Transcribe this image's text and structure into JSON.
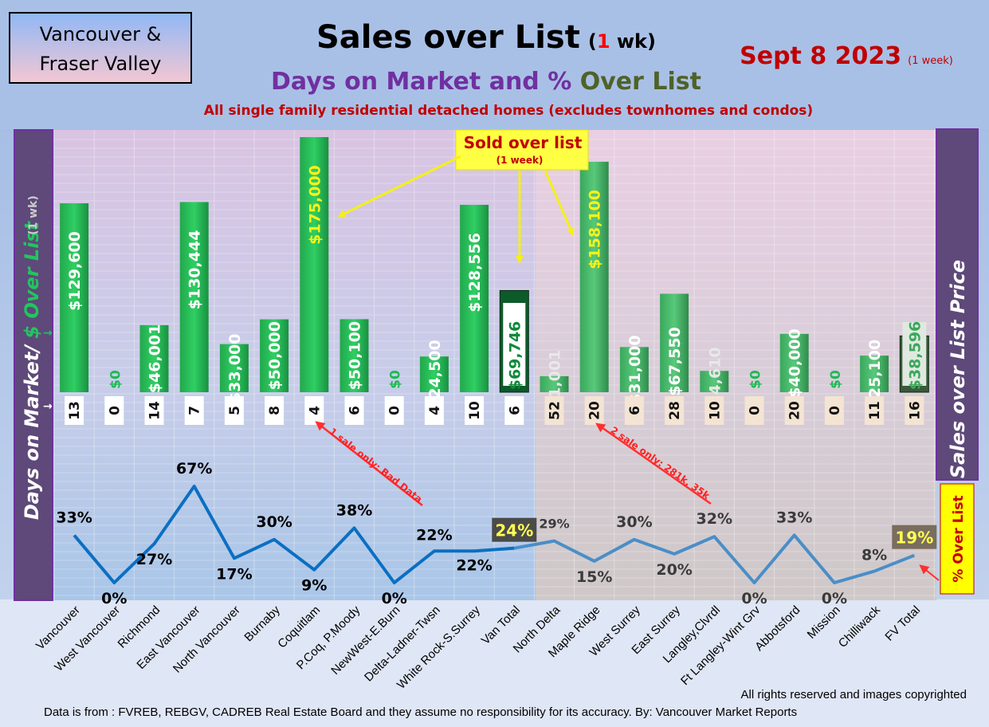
{
  "region_box": {
    "line1": "Vancouver &",
    "line2": "Fraser Valley"
  },
  "title": {
    "main": "Sales over List",
    "paren_open": "(",
    "paren_number": "1",
    "paren_rest": " wk)"
  },
  "date": {
    "text": "Sept 8  2023",
    "note": "(1 week)"
  },
  "subtitle": {
    "part1": "Days on Market and % ",
    "part2": "Over List"
  },
  "description": "All single family residential detached homes (excludes townhomes and condos)",
  "left_label": {
    "part1": "Days on Market/ ",
    "part2": "$ Over List",
    "note": "(1 wk)"
  },
  "right_label": "Sales over List Price",
  "pct_label": "% Over List",
  "callout": {
    "title": "Sold over list",
    "subtitle": "(1 week)"
  },
  "annotations": {
    "bad_data": "1 sale only: Bad Data",
    "two_sales": "2 sale only: 281k, 35k"
  },
  "footer": {
    "rights": "All rights reserved and  images copyrighted",
    "source": "Data is from : FVREB, REBGV, CADREB Real Estate Board and they assume no responsibility for its accuracy. By: Vancouver Market Reports"
  },
  "colors": {
    "bar_green": "#1db954",
    "total_bar": "#0d5a2a",
    "line_van": "#0b6fc2",
    "line_fv": "#4a8ec8",
    "date_red": "#c00000",
    "purple": "#7030a0",
    "olive": "#4f6228"
  },
  "chart_data": {
    "type": "bar",
    "categories": [
      "Vancouver",
      "West Vancouver",
      "Richmond",
      "East Vancouver",
      "North Vancouver",
      "Burnaby",
      "Coquitlam",
      "P.Coq, P.Moody",
      "NewWest-E.Burn",
      "Delta-Ladner-Twsn",
      "White Rock-S.Surrey",
      "Van Total",
      "North Delta",
      "Maple Ridge",
      "West Surrey",
      "East Surrey",
      "Langley,Clvrdl",
      "Ft Langley-Wint Grv",
      "Abbotsford",
      "Mission",
      "Chilliwack",
      "FV Total"
    ],
    "over_list_values": [
      129600,
      0,
      46001,
      130444,
      33000,
      50000,
      175000,
      50100,
      0,
      24500,
      128556,
      69746,
      11001,
      158100,
      31000,
      67550,
      14610,
      0,
      40000,
      0,
      25100,
      38596
    ],
    "over_list_labels": [
      "$129,600",
      "$0",
      "$46,001",
      "$130,444",
      "$33,000",
      "$50,000",
      "$175,000",
      "$50,100",
      "$0",
      "$24,500",
      "$128,556",
      "$69,746",
      "$11,001",
      "$158,100",
      "$31,000",
      "$67,550",
      "$14,610",
      "$0",
      "$40,000",
      "$0",
      "$25,100",
      "$38,596"
    ],
    "days_on_market": [
      13,
      0,
      14,
      7,
      5,
      8,
      4,
      6,
      0,
      4,
      10,
      6,
      52,
      20,
      6,
      28,
      10,
      0,
      20,
      0,
      11,
      16
    ],
    "pct_over_list": [
      33,
      0,
      27,
      67,
      17,
      30,
      9,
      38,
      0,
      22,
      22,
      24,
      29,
      15,
      30,
      20,
      32,
      0,
      33,
      0,
      8,
      19
    ],
    "pct_labels": [
      "33%",
      "0%",
      "27%",
      "67%",
      "17%",
      "30%",
      "9%",
      "38%",
      "0%",
      "22%",
      "22%",
      "24%",
      "29%",
      "15%",
      "30%",
      "20%",
      "32%",
      "0%",
      "33%",
      "0%",
      "8%",
      "19%"
    ]
  }
}
